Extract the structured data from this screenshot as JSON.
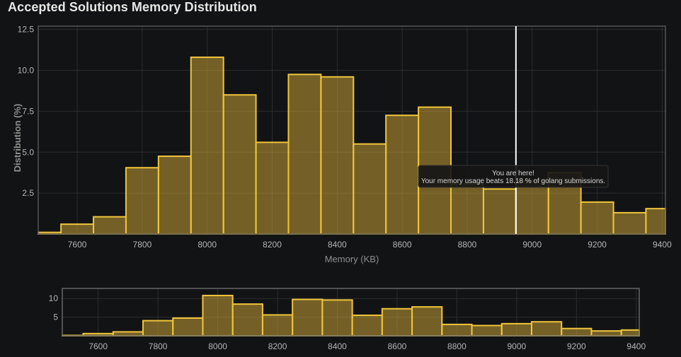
{
  "page": {
    "title": "Accepted Solutions Memory Distribution"
  },
  "colors": {
    "background": "#121314",
    "bar_fill": "rgba(196,160,52,0.55)",
    "bar_stroke": "#f0c53c",
    "grid": "#2c2d2f",
    "frame": "#555555",
    "marker": "#ffffff",
    "tooltip_bg": "#161616"
  },
  "chart_data": [
    {
      "type": "bar",
      "role": "main-histogram",
      "title": "Accepted Solutions Memory Distribution",
      "xlabel": "Memory (KB)",
      "ylabel": "Distribution (%)",
      "xlim": [
        7480,
        9410
      ],
      "ylim": [
        0,
        12.7
      ],
      "x_ticks": [
        7600,
        7800,
        8000,
        8200,
        8400,
        8600,
        8800,
        9000,
        9200,
        9400
      ],
      "x_tick_labels": [
        "7600",
        "7800",
        "8000",
        "8200",
        "8400",
        "8600",
        "8800",
        "9000",
        "9200",
        "9400"
      ],
      "y_ticks": [
        2.5,
        5.0,
        7.5,
        10.0,
        12.5
      ],
      "y_tick_labels": [
        "2.5",
        "5.0",
        "7.5",
        "10.0",
        "12.5"
      ],
      "bin_width": 100,
      "bin_starts": [
        7450,
        7550,
        7650,
        7750,
        7850,
        7950,
        8050,
        8150,
        8250,
        8350,
        8450,
        8550,
        8650,
        8750,
        8850,
        8950,
        9050,
        9150,
        9250,
        9350
      ],
      "values": [
        0.1,
        0.6,
        1.05,
        4.05,
        4.75,
        10.8,
        8.5,
        5.6,
        9.75,
        9.6,
        5.5,
        7.25,
        7.75,
        3.05,
        2.75,
        3.25,
        3.75,
        1.95,
        1.3,
        1.55
      ],
      "grid": true,
      "marker_x": 8950,
      "annotation": {
        "line1": "You are here!",
        "line2": "Your memory usage beats 18.18 % of golang submissions."
      }
    },
    {
      "type": "bar",
      "role": "navigator-histogram",
      "xlim": [
        7480,
        9410
      ],
      "ylim": [
        0,
        12.7
      ],
      "x_ticks": [
        7600,
        7800,
        8000,
        8200,
        8400,
        8600,
        8800,
        9000,
        9200,
        9400
      ],
      "x_tick_labels": [
        "7600",
        "7800",
        "8000",
        "8200",
        "8400",
        "8600",
        "8800",
        "9000",
        "9200",
        "9400"
      ],
      "y_ticks": [
        5,
        10
      ],
      "y_tick_labels": [
        "5",
        "10"
      ],
      "grid": true
    }
  ]
}
